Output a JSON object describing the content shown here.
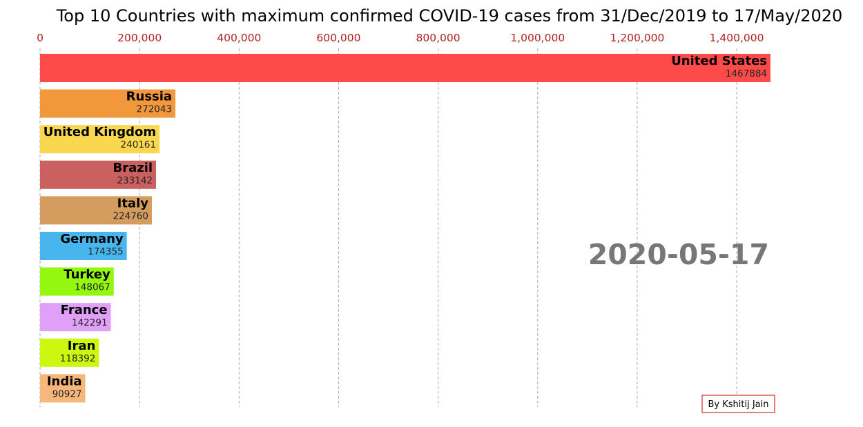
{
  "chart_data": {
    "type": "bar",
    "orientation": "horizontal",
    "title": "Top 10 Countries with maximum confirmed COVID-19 cases from 31/Dec/2019 to 17/May/2020",
    "date_label": "2020-05-17",
    "credit": "By Kshitij Jain",
    "xlim": [
      0,
      1467884
    ],
    "x_ticks": [
      0,
      200000,
      400000,
      600000,
      800000,
      1000000,
      1200000,
      1400000
    ],
    "x_tick_labels": [
      "0",
      "200,000",
      "400,000",
      "600,000",
      "800,000",
      "1,000,000",
      "1,200,000",
      "1,400,000"
    ],
    "x_axis_position": "top",
    "grid": "vertical dashed",
    "categories": [
      "United States",
      "Russia",
      "United Kingdom",
      "Brazil",
      "Italy",
      "Germany",
      "Turkey",
      "France",
      "Iran",
      "India"
    ],
    "values": [
      1467884,
      272043,
      240161,
      233142,
      224760,
      174355,
      148067,
      142291,
      118392,
      90927
    ],
    "value_labels": [
      "1467884",
      "272043",
      "240161",
      "233142",
      "224760",
      "174355",
      "148067",
      "142291",
      "118392",
      "90927"
    ],
    "colors": [
      "#ff4a4a",
      "#f2983c",
      "#f9d74e",
      "#cb6060",
      "#d59c60",
      "#48b6ec",
      "#93f70f",
      "#e0a0f8",
      "#cdf70f",
      "#f7b77c"
    ],
    "tick_color": "#b22222",
    "grid_color": "#aaaaaa",
    "date_color": "#777777",
    "credit_border_color": "#cc0000"
  }
}
